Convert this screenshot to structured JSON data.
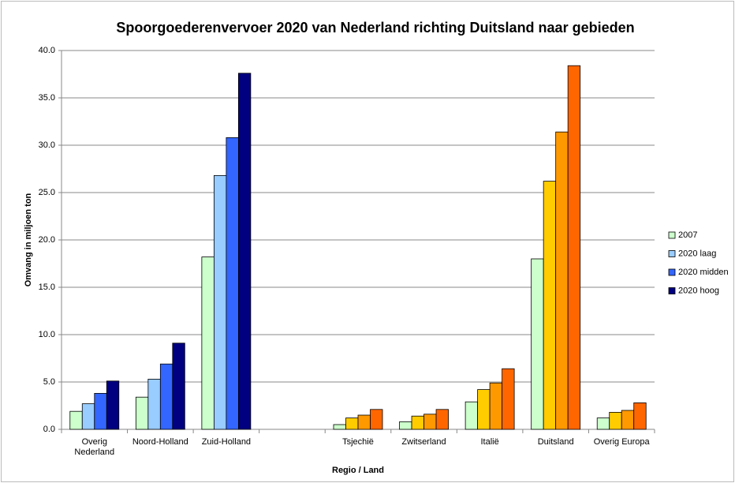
{
  "chart_data": {
    "type": "bar",
    "title": "Spoorgoederenvervoer 2020 van Nederland richting Duitsland naar gebieden",
    "x_label": "Regio / Land",
    "y_label": "Omvang in miljoen ton",
    "categories": [
      "Overig Nederland",
      "Noord-Holland",
      "Zuid-Holland",
      null,
      "Tsjechië",
      "Zwitserland",
      "Italië",
      "Duitsland",
      "Overig Europa"
    ],
    "series": [
      {
        "name": "2007",
        "color": "#ccffcc",
        "colors": [
          "#ccffcc",
          "#ccffcc",
          "#ccffcc",
          "#ccffcc",
          "#ccffcc",
          "#ccffcc",
          "#ccffcc",
          "#ccffcc",
          "#ccffcc"
        ],
        "values": [
          1.9,
          3.4,
          18.2,
          null,
          0.5,
          0.8,
          2.9,
          18.0,
          1.2
        ]
      },
      {
        "name": "2020 laag",
        "color": "#99ccff",
        "colors": [
          "#99ccff",
          "#99ccff",
          "#99ccff",
          "#99ccff",
          "#ffcc00",
          "#ffcc00",
          "#ffcc00",
          "#ffcc00",
          "#ffcc00"
        ],
        "values": [
          2.7,
          5.3,
          26.8,
          null,
          1.2,
          1.4,
          4.2,
          26.2,
          1.8
        ]
      },
      {
        "name": "2020 midden",
        "color": "#3366ff",
        "colors": [
          "#3366ff",
          "#3366ff",
          "#3366ff",
          "#3366ff",
          "#ff9900",
          "#ff9900",
          "#ff9900",
          "#ff9900",
          "#ff9900"
        ],
        "values": [
          3.8,
          6.9,
          30.8,
          null,
          1.5,
          1.6,
          4.9,
          31.4,
          2.0
        ]
      },
      {
        "name": "2020 hoog",
        "color": "#000080",
        "colors": [
          "#000080",
          "#000080",
          "#000080",
          "#000080",
          "#ff6600",
          "#ff6600",
          "#ff6600",
          "#ff6600",
          "#ff6600"
        ],
        "values": [
          5.1,
          9.1,
          37.6,
          null,
          2.1,
          2.1,
          6.4,
          38.4,
          2.8
        ]
      }
    ],
    "ylim": [
      0,
      40
    ],
    "yticks": [
      {
        "value": 0,
        "label": "0.0"
      },
      {
        "value": 5,
        "label": "5.0"
      },
      {
        "value": 10,
        "label": "10.0"
      },
      {
        "value": 15,
        "label": "15.0"
      },
      {
        "value": 20,
        "label": "20.0"
      },
      {
        "value": 25,
        "label": "25.0"
      },
      {
        "value": 30,
        "label": "30.0"
      },
      {
        "value": 35,
        "label": "35.0"
      },
      {
        "value": 40,
        "label": "40.0"
      }
    ],
    "grid": true,
    "legend": "right"
  }
}
